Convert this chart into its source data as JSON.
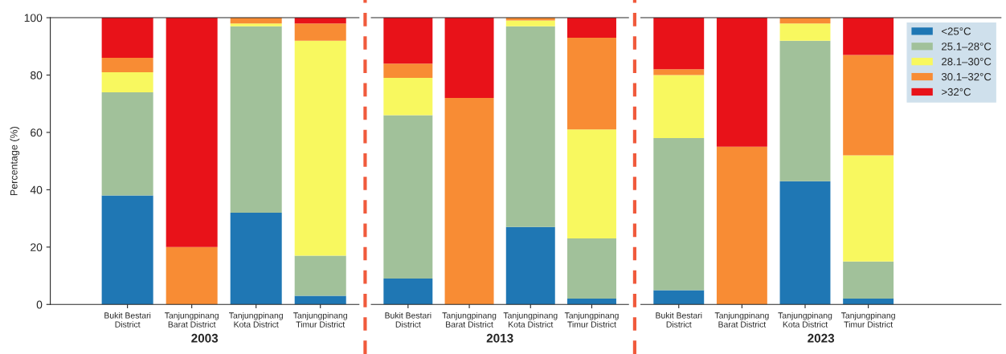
{
  "chart_data": [
    {
      "type": "bar",
      "stacked": true,
      "xlabel": "2003",
      "ylabel": "Percentage (%)",
      "categories": [
        "Bukit Bestari\nDistrict",
        "Tanjungpinang\nBarat District",
        "Tanjungpinang\nKota District",
        "Tanjungpinang\nTimur District"
      ],
      "ylim": [
        0,
        100
      ],
      "yticks": [
        0,
        20,
        40,
        60,
        80,
        100
      ],
      "grid": false,
      "series": [
        {
          "color": "#1f77b4",
          "values": [
            38,
            0,
            32,
            3
          ]
        },
        {
          "color": "#a1c19a",
          "values": [
            36,
            0,
            65,
            14
          ]
        },
        {
          "color": "#f8f85f",
          "values": [
            7,
            0,
            1,
            75
          ]
        },
        {
          "color": "#f88c34",
          "values": [
            5,
            20,
            2,
            6
          ]
        },
        {
          "color": "#e81219",
          "values": [
            14,
            80,
            0,
            2
          ]
        }
      ]
    },
    {
      "type": "bar",
      "stacked": true,
      "xlabel": "2013",
      "categories": [
        "Bukit Bestari\nDistrict",
        "Tanjungpinang\nBarat District",
        "Tanjungpinang\nKota District",
        "Tanjungpinang\nTimur District"
      ],
      "ylim": [
        0,
        100
      ],
      "tick_labels": "x",
      "grid": false,
      "series": [
        {
          "color": "#1f77b4",
          "values": [
            9,
            0,
            27,
            2
          ]
        },
        {
          "color": "#a1c19a",
          "values": [
            57,
            0,
            70,
            21
          ]
        },
        {
          "color": "#f8f85f",
          "values": [
            13,
            0,
            2,
            38
          ]
        },
        {
          "color": "#f88c34",
          "values": [
            5,
            72,
            1,
            32
          ]
        },
        {
          "color": "#e81219",
          "values": [
            16,
            28,
            0,
            7
          ]
        }
      ]
    },
    {
      "type": "bar",
      "stacked": true,
      "xlabel": "2023",
      "categories": [
        "Bukit Bestari\nDistrict",
        "Tanjungpinang\nBarat District",
        "Tanjungpinang\nKota District",
        "Tanjungpinang\nTimur District"
      ],
      "ylim": [
        0,
        100
      ],
      "tick_labels": "x",
      "grid": false,
      "legend": "top right",
      "series": [
        {
          "name": "<25°C",
          "color": "#1f77b4",
          "values": [
            5,
            0,
            43,
            2
          ]
        },
        {
          "name": "25.1–28°C",
          "color": "#a1c19a",
          "values": [
            53,
            0,
            49,
            13
          ]
        },
        {
          "name": "28.1–30°C",
          "color": "#f8f85f",
          "values": [
            22,
            0,
            6,
            37
          ]
        },
        {
          "name": "30.1–32°C",
          "color": "#f88c34",
          "values": [
            2,
            55,
            2,
            35
          ]
        },
        {
          "name": ">32°C",
          "color": "#e81219",
          "values": [
            18,
            45,
            0,
            13
          ]
        }
      ]
    }
  ]
}
